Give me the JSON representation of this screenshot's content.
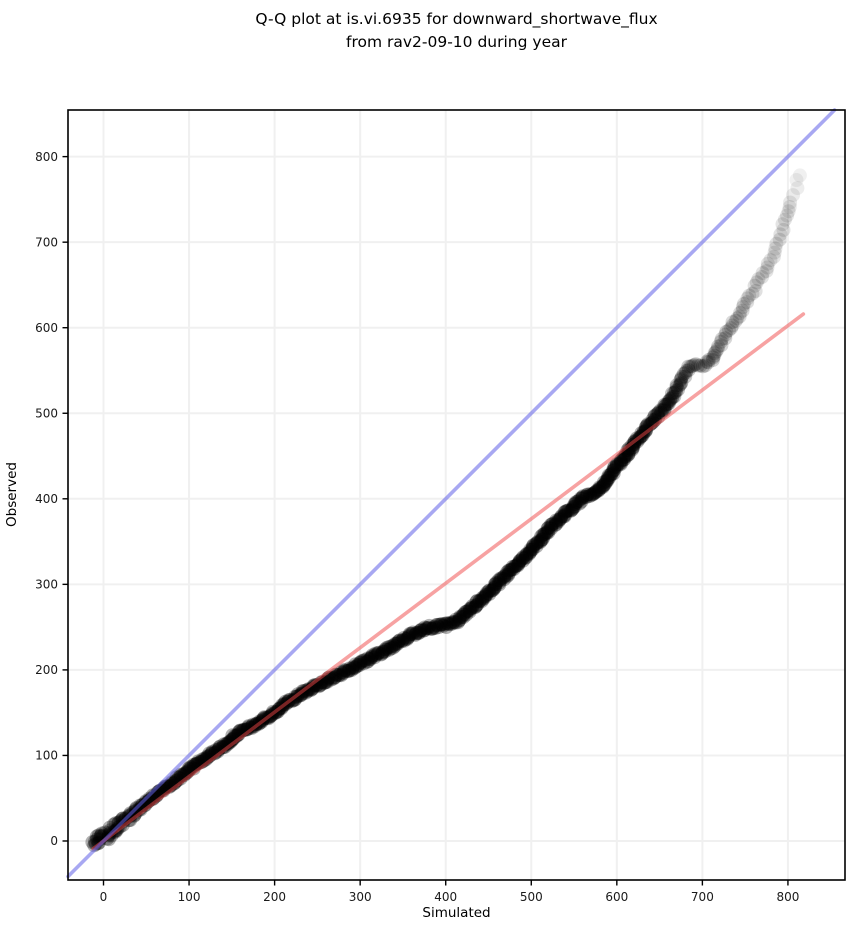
{
  "chart_data": {
    "type": "scatter",
    "subtype": "qq-plot",
    "title": [
      "Q-Q plot at is.vi.6935 for downward_shortwave_flux",
      "from rav2-09-10 during year"
    ],
    "xlabel": "Simulated",
    "ylabel": "Observed",
    "xlim": [
      -41.5,
      866.7
    ],
    "ylim": [
      -45.6,
      854.5
    ],
    "x_ticks": [
      0,
      100,
      200,
      300,
      400,
      500,
      600,
      700,
      800
    ],
    "y_ticks": [
      0,
      100,
      200,
      300,
      400,
      500,
      600,
      700,
      800
    ],
    "grid": true,
    "grid_color": "#f0f0f0",
    "spine_color": "#000000",
    "tick_label_color": "#1a1a1a",
    "identity_line": {
      "color": "#6060e8",
      "opacity": 0.55,
      "points": [
        [
          -41.5,
          -41.5
        ],
        [
          854.5,
          854.5
        ]
      ]
    },
    "fit_line": {
      "color": "#f04646",
      "opacity": 0.5,
      "points": [
        [
          -12,
          -9
        ],
        [
          818,
          616
        ]
      ]
    },
    "point_style": {
      "color": "#000000",
      "radius": 7
    },
    "points_note": "each point = [simulated, observed, alpha, densitySpacingPx, jitterPx] sampled along the quantile curve",
    "points": [
      [
        -11,
        -5,
        0.3,
        1.2,
        3.5
      ],
      [
        -5,
        1,
        0.3,
        1.2,
        4.5
      ],
      [
        1,
        5,
        0.3,
        1.2,
        5
      ],
      [
        9,
        11,
        0.3,
        1.2,
        4
      ],
      [
        18,
        18,
        0.3,
        1.2,
        3
      ],
      [
        30,
        28,
        0.3,
        1.2,
        2.5
      ],
      [
        45,
        41,
        0.3,
        1.2,
        1.8
      ],
      [
        64,
        56,
        0.3,
        1.2,
        1.8
      ],
      [
        80,
        68,
        0.3,
        1.2,
        1.8
      ],
      [
        100,
        83,
        0.3,
        1.2,
        1.8
      ],
      [
        115,
        94,
        0.3,
        1.2,
        1.8
      ],
      [
        129,
        104,
        0.3,
        1.2,
        1.8
      ],
      [
        140,
        110,
        0.3,
        1.2,
        1.8
      ],
      [
        154,
        124,
        0.3,
        1.2,
        1.8
      ],
      [
        166,
        130,
        0.3,
        1.2,
        1.8
      ],
      [
        181,
        138,
        0.3,
        1.2,
        1.8
      ],
      [
        200,
        150,
        0.3,
        1.2,
        1.8
      ],
      [
        216,
        163,
        0.3,
        1.2,
        1.8
      ],
      [
        228,
        170,
        0.3,
        1.2,
        1.8
      ],
      [
        245,
        180,
        0.3,
        1.2,
        1.8
      ],
      [
        262,
        188,
        0.3,
        1.2,
        1.8
      ],
      [
        282,
        198,
        0.3,
        1.2,
        1.8
      ],
      [
        300,
        207,
        0.3,
        1.2,
        1.8
      ],
      [
        320,
        218,
        0.3,
        1.2,
        1.8
      ],
      [
        340,
        229,
        0.3,
        1.2,
        1.8
      ],
      [
        360,
        241,
        0.3,
        1.2,
        1.8
      ],
      [
        377,
        249,
        0.3,
        1.2,
        1.8
      ],
      [
        400,
        252,
        0.3,
        1.2,
        1.8
      ],
      [
        415,
        258,
        0.3,
        1.2,
        1.8
      ],
      [
        430,
        272,
        0.3,
        1.2,
        1.8
      ],
      [
        450,
        290,
        0.3,
        1.2,
        1.8
      ],
      [
        470,
        310,
        0.3,
        1.2,
        1.8
      ],
      [
        490,
        330,
        0.3,
        1.2,
        1.8
      ],
      [
        510,
        352,
        0.3,
        1.2,
        1.8
      ],
      [
        524,
        368,
        0.3,
        1.2,
        1.8
      ],
      [
        536,
        379,
        0.3,
        1.2,
        1.8
      ],
      [
        550,
        392,
        0.3,
        1.2,
        1.8
      ],
      [
        565,
        404,
        0.3,
        1.2,
        1.8
      ],
      [
        578,
        410,
        0.3,
        1.2,
        1.8
      ],
      [
        590,
        424,
        0.3,
        1.2,
        1.8
      ],
      [
        605,
        444,
        0.3,
        1.2,
        1.8
      ],
      [
        620,
        463,
        0.3,
        1.2,
        1.8
      ],
      [
        635,
        484,
        0.28,
        1.3,
        1.8
      ],
      [
        648,
        498,
        0.27,
        1.4,
        1.9
      ],
      [
        660,
        512,
        0.26,
        1.6,
        2
      ],
      [
        668,
        525,
        0.24,
        1.8,
        2
      ],
      [
        676,
        540,
        0.22,
        2,
        2
      ],
      [
        684,
        553,
        0.2,
        2.2,
        2
      ],
      [
        695,
        556,
        0.19,
        2.4,
        2
      ],
      [
        708,
        559,
        0.18,
        2.6,
        2
      ],
      [
        716,
        572,
        0.17,
        2.8,
        2
      ],
      [
        725,
        589,
        0.16,
        3,
        2
      ],
      [
        733,
        600,
        0.15,
        3.2,
        2
      ],
      [
        742,
        614,
        0.14,
        3.5,
        2
      ],
      [
        750,
        627,
        0.13,
        3.8,
        2
      ],
      [
        758,
        640,
        0.12,
        4.2,
        2
      ],
      [
        765,
        652,
        0.12,
        4.6,
        2
      ],
      [
        772,
        663,
        0.11,
        5,
        2
      ],
      [
        778,
        674,
        0.11,
        5.5,
        2
      ],
      [
        783,
        683,
        0.1,
        6,
        2
      ],
      [
        787,
        692,
        0.1,
        6.5,
        2
      ],
      [
        790,
        703,
        0.12,
        7,
        2
      ],
      [
        793,
        715,
        0.11,
        7.5,
        2
      ],
      [
        797,
        726,
        0.1,
        8,
        2
      ],
      [
        801,
        736,
        0.1,
        8.5,
        2
      ],
      [
        804,
        746,
        0.09,
        9,
        2
      ],
      [
        806,
        755,
        0.08,
        9.5,
        2
      ],
      [
        809,
        764,
        0.07,
        10,
        2
      ],
      [
        812,
        772,
        0.06,
        10,
        2
      ],
      [
        814,
        778,
        0.06,
        10,
        2
      ]
    ]
  }
}
